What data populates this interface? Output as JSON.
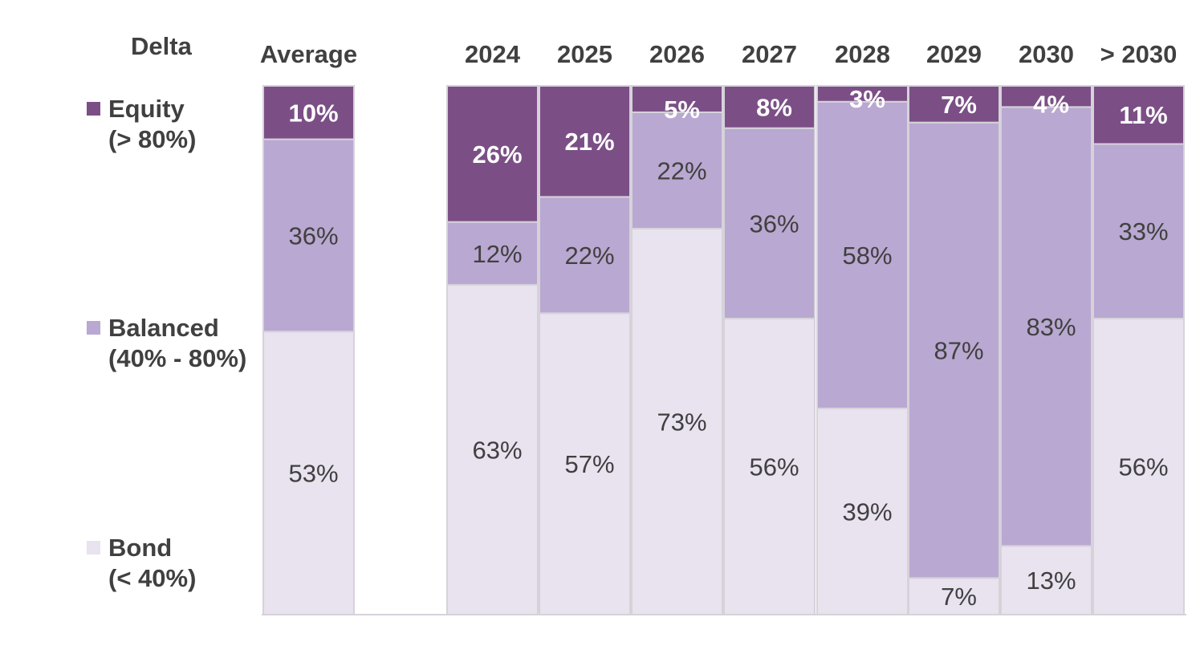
{
  "colors": {
    "equity": "#7b4f86",
    "balanced": "#b9a8d1",
    "bond": "#e9e2ef",
    "border": "#d6d2da",
    "text_dark": "#404040",
    "text_light": "#ffffff"
  },
  "legend": {
    "title": "Delta",
    "items": [
      {
        "label": "Equity",
        "sub": "(> 80%)"
      },
      {
        "label": "Balanced",
        "sub": "(40% - 80%)"
      },
      {
        "label": "Bond",
        "sub": "(< 40%)"
      }
    ]
  },
  "chart_data": {
    "type": "bar",
    "stacked": true,
    "normalized_to_100": true,
    "categories": [
      "Average",
      "2024",
      "2025",
      "2026",
      "2027",
      "2028",
      "2029",
      "2030",
      "> 2030"
    ],
    "series": [
      {
        "name": "Bond",
        "values": [
          53,
          63,
          57,
          73,
          56,
          39,
          7,
          13,
          56
        ]
      },
      {
        "name": "Balanced",
        "values": [
          36,
          12,
          22,
          22,
          36,
          58,
          87,
          83,
          33
        ]
      },
      {
        "name": "Equity",
        "values": [
          10,
          26,
          21,
          5,
          8,
          3,
          7,
          4,
          11
        ]
      }
    ],
    "data_labels": [
      [
        "53%",
        "63%",
        "57%",
        "73%",
        "56%",
        "39%",
        "7%",
        "13%",
        "56%"
      ],
      [
        "36%",
        "12%",
        "22%",
        "22%",
        "36%",
        "58%",
        "87%",
        "83%",
        "33%"
      ],
      [
        "10%",
        "26%",
        "21%",
        "5%",
        "8%",
        "3%",
        "7%",
        "4%",
        "11%"
      ]
    ],
    "ylim": [
      0,
      100
    ],
    "legend_position": "left",
    "grid": false
  }
}
